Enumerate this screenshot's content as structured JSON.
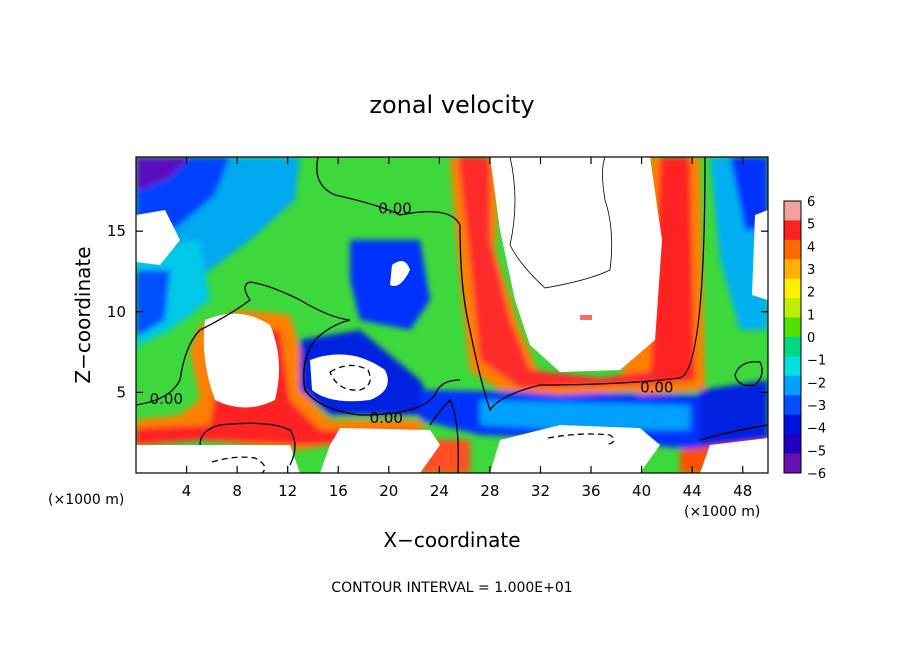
{
  "chart_data": {
    "type": "heatmap",
    "title": "zonal velocity",
    "xlabel": "X−coordinate",
    "ylabel": "Z−coordinate",
    "x_unit_label": "(×1000 m)",
    "x_unit_label_right": "(×1000 m)",
    "xlim": [
      0,
      50
    ],
    "ylim": [
      0,
      19.6
    ],
    "xticks": [
      4,
      8,
      12,
      16,
      20,
      24,
      28,
      32,
      36,
      40,
      44,
      48
    ],
    "xtick_labels": [
      "4",
      "8",
      "12",
      "16",
      "20",
      "24",
      "28",
      "32",
      "36",
      "40",
      "44",
      "48"
    ],
    "yticks": [
      5,
      10,
      15
    ],
    "ytick_labels": [
      "5",
      "10",
      "15"
    ],
    "colorbar": {
      "min": -6,
      "max": 6,
      "ticks": [
        6,
        5,
        4,
        3,
        2,
        1,
        0,
        -1,
        -2,
        -3,
        -4,
        -5,
        -6
      ],
      "tick_labels": [
        "6",
        "5",
        "4",
        "3",
        "2",
        "1",
        "0",
        "−1",
        "−2",
        "−3",
        "−4",
        "−5",
        "−6"
      ],
      "colors": [
        "#f4a0a0",
        "#ff2020",
        "#ff6a00",
        "#ffb000",
        "#fff000",
        "#bdf000",
        "#50e000",
        "#00d880",
        "#00e0e0",
        "#00a0ff",
        "#0050ff",
        "#0010e0",
        "#2000c0",
        "#6a10b0"
      ]
    },
    "contour_labels": [
      {
        "text": "0.00",
        "x": 20.5,
        "y": 16.4
      },
      {
        "text": "0.00",
        "x": 2.4,
        "y": 4.6
      },
      {
        "text": "0.00",
        "x": 19.8,
        "y": 3.4
      },
      {
        "text": "0.00",
        "x": 41.2,
        "y": 5.3
      }
    ],
    "footnote": "CONTOUR INTERVAL = 1.000E+01",
    "grid": false
  }
}
